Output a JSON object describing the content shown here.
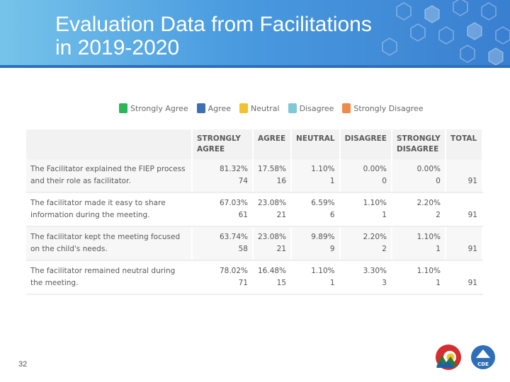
{
  "header": {
    "title_line1": "Evaluation Data from Facilitations",
    "title_line2": "in 2019-2020"
  },
  "legend": [
    {
      "label": "Strongly Agree",
      "color": "#2db55d"
    },
    {
      "label": "Agree",
      "color": "#3f6fb5"
    },
    {
      "label": "Neutral",
      "color": "#f2c12e"
    },
    {
      "label": "Disagree",
      "color": "#7fc8d6"
    },
    {
      "label": "Strongly Disagree",
      "color": "#f08a4b"
    }
  ],
  "table": {
    "columns": [
      "STRONGLY AGREE",
      "AGREE",
      "NEUTRAL",
      "DISAGREE",
      "STRONGLY DISAGREE",
      "TOTAL"
    ],
    "rows": [
      {
        "label": "The Facilitator explained the FIEP process and their role as facilitator.",
        "cells": [
          [
            "81.32%",
            "74"
          ],
          [
            "17.58%",
            "16"
          ],
          [
            "1.10%",
            "1"
          ],
          [
            "0.00%",
            "0"
          ],
          [
            "0.00%",
            "0"
          ]
        ],
        "total": "91"
      },
      {
        "label": "The facilitator made it easy to share information during the meeting.",
        "cells": [
          [
            "67.03%",
            "61"
          ],
          [
            "23.08%",
            "21"
          ],
          [
            "6.59%",
            "6"
          ],
          [
            "1.10%",
            "1"
          ],
          [
            "2.20%",
            "2"
          ]
        ],
        "total": "91"
      },
      {
        "label": "The facilitator kept the meeting focused on the child's needs.",
        "cells": [
          [
            "63.74%",
            "58"
          ],
          [
            "23.08%",
            "21"
          ],
          [
            "9.89%",
            "9"
          ],
          [
            "2.20%",
            "2"
          ],
          [
            "1.10%",
            "1"
          ]
        ],
        "total": "91"
      },
      {
        "label": "The facilitator remained neutral during the meeting.",
        "cells": [
          [
            "78.02%",
            "71"
          ],
          [
            "16.48%",
            "15"
          ],
          [
            "1.10%",
            "1"
          ],
          [
            "3.30%",
            "3"
          ],
          [
            "1.10%",
            "1"
          ]
        ],
        "total": "91"
      }
    ]
  },
  "footer": {
    "page_number": "32",
    "logo_text": "CDE"
  }
}
